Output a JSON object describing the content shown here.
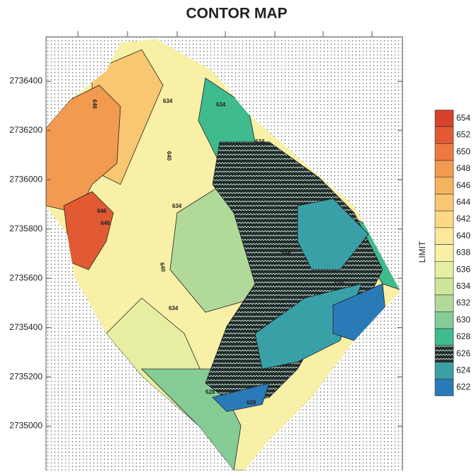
{
  "chart_data": {
    "type": "contour",
    "title": "CONTOR MAP",
    "colorbar_label": "LIMIT",
    "ylim": [
      2734820,
      2736580
    ],
    "yticks": [
      2735000,
      2735200,
      2735400,
      2735600,
      2735800,
      2736000,
      2736200,
      2736400
    ],
    "levels": [
      654,
      652,
      650,
      648,
      646,
      644,
      642,
      640,
      638,
      636,
      634,
      632,
      630,
      628,
      626,
      624,
      622
    ],
    "colors": [
      "#d7402a",
      "#e25a33",
      "#ec7a3f",
      "#f29a50",
      "#f6b35f",
      "#f9c771",
      "#fbd985",
      "#fce89b",
      "#f7f0a6",
      "#e7eea2",
      "#cfe59c",
      "#b1d99a",
      "#85cc96",
      "#3fbb8e",
      "#1f2a2a",
      "#3aa0a8",
      "#2b7ab8"
    ],
    "hatched_level": 626,
    "contour_labels": [
      646,
      634,
      634,
      634,
      640,
      646,
      646,
      634,
      640,
      634,
      628,
      628,
      628,
      628
    ]
  }
}
